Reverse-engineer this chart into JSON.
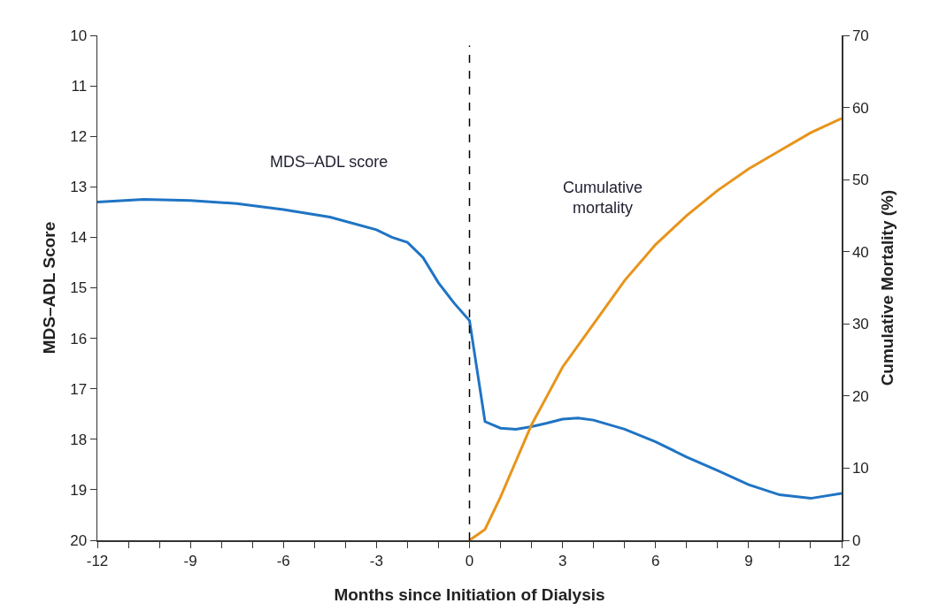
{
  "chart_data": {
    "type": "line",
    "xlabel": "Months since Initiation of Dialysis",
    "ylabel": "MDS–ADL Score",
    "y2label": "Cumulative Mortality (%)",
    "xlim": [
      -12,
      12
    ],
    "xticks": [
      -12,
      {
        "value": -11,
        "label": null
      },
      {
        "value": -10,
        "label": null
      },
      -9,
      {
        "value": -8,
        "label": null
      },
      {
        "value": -7,
        "label": null
      },
      -6,
      {
        "value": -5,
        "label": null
      },
      {
        "value": -4,
        "label": null
      },
      -3,
      {
        "value": -2,
        "label": null
      },
      {
        "value": -1,
        "label": null
      },
      0,
      {
        "value": 1,
        "label": null
      },
      {
        "value": 2,
        "label": null
      },
      3,
      {
        "value": 4,
        "label": null
      },
      {
        "value": 5,
        "label": null
      },
      6,
      {
        "value": 7,
        "label": null
      },
      {
        "value": 8,
        "label": null
      },
      9,
      {
        "value": 10,
        "label": null
      },
      {
        "value": 11,
        "label": null
      },
      12
    ],
    "ylim": [
      20,
      10
    ],
    "yticks": [
      10,
      11,
      12,
      13,
      14,
      15,
      16,
      17,
      18,
      19,
      20
    ],
    "y2lim": [
      0,
      70
    ],
    "y2ticks": [
      0,
      10,
      20,
      30,
      40,
      50,
      60,
      70
    ],
    "grid": false,
    "legend": false,
    "line_style": "solid",
    "ref_lines": [
      {
        "axis": "x",
        "value": 0,
        "color": "#000000",
        "line_style": "dashed"
      }
    ],
    "series": [
      {
        "name": "MDS–ADL score",
        "color": "#1f74c4",
        "x": [
          -12,
          -10.5,
          -9,
          -7.5,
          -6,
          -4.5,
          -3,
          -2.5,
          -2,
          -1.5,
          -1,
          -0.5,
          0,
          0.5,
          1,
          1.5,
          2,
          2.5,
          3,
          3.5,
          4,
          5,
          6,
          7,
          8,
          9,
          10,
          11,
          12
        ],
        "values": [
          13.3,
          13.25,
          13.27,
          13.33,
          13.45,
          13.6,
          13.85,
          14.0,
          14.1,
          14.4,
          14.9,
          15.3,
          15.65,
          17.65,
          17.78,
          17.8,
          17.75,
          17.68,
          17.6,
          17.58,
          17.62,
          17.8,
          18.05,
          18.35,
          18.62,
          18.9,
          19.1,
          19.17,
          19.07
        ]
      },
      {
        "name": "Cumulative mortality",
        "color": "#e8941a",
        "axis": "y2",
        "x": [
          0,
          0.5,
          1,
          1.5,
          2,
          2.5,
          3,
          4,
          5,
          6,
          7,
          8,
          9,
          10,
          11,
          12
        ],
        "values": [
          0,
          1.5,
          6,
          11,
          16,
          20,
          24,
          30,
          36,
          41,
          45,
          48.5,
          51.5,
          54,
          56.5,
          58.5
        ]
      }
    ]
  }
}
